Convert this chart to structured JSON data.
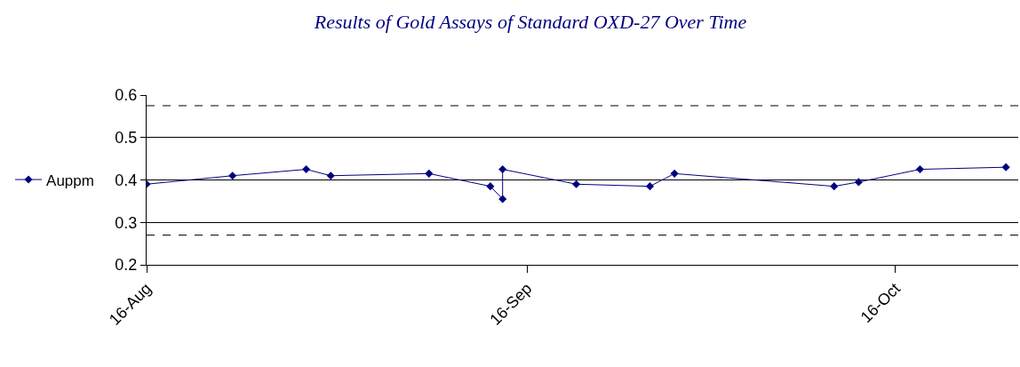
{
  "chart_data": {
    "type": "line",
    "title": "Results of Gold Assays of Standard OXD-27 Over Time",
    "x": [
      "--08-16",
      "--08-23",
      "--08-29",
      "--08-31",
      "--09-08",
      "--09-13",
      "--09-14",
      "--09-14",
      "--09-20",
      "--09-26",
      "--09-28",
      "--10-11",
      "--10-13",
      "--10-18",
      "--10-25"
    ],
    "series": [
      {
        "name": "Auppm",
        "color": "#000080",
        "values": [
          0.39,
          0.41,
          0.425,
          0.41,
          0.415,
          0.385,
          0.355,
          0.425,
          0.39,
          0.385,
          0.415,
          0.385,
          0.395,
          0.425,
          0.43
        ]
      }
    ],
    "xlim": [
      "--08-16",
      "--10-26"
    ],
    "xticks": [
      {
        "value": "--08-16",
        "label": "16-Aug"
      },
      {
        "value": "--09-16",
        "label": "16-Sep"
      },
      {
        "value": "--10-16",
        "label": "16-Oct"
      }
    ],
    "ylim": [
      0.2,
      0.6
    ],
    "yticks": [
      0.2,
      0.3,
      0.4,
      0.5,
      0.6
    ],
    "ref_lines": [
      {
        "axis": "y",
        "value": 0.575,
        "line_style": "dashed",
        "color": "#000000"
      },
      {
        "axis": "y",
        "value": 0.27,
        "line_style": "dashed",
        "color": "#000000"
      }
    ],
    "grid": "y",
    "legend": "left",
    "marker": "diamond",
    "line_style": "solid"
  }
}
